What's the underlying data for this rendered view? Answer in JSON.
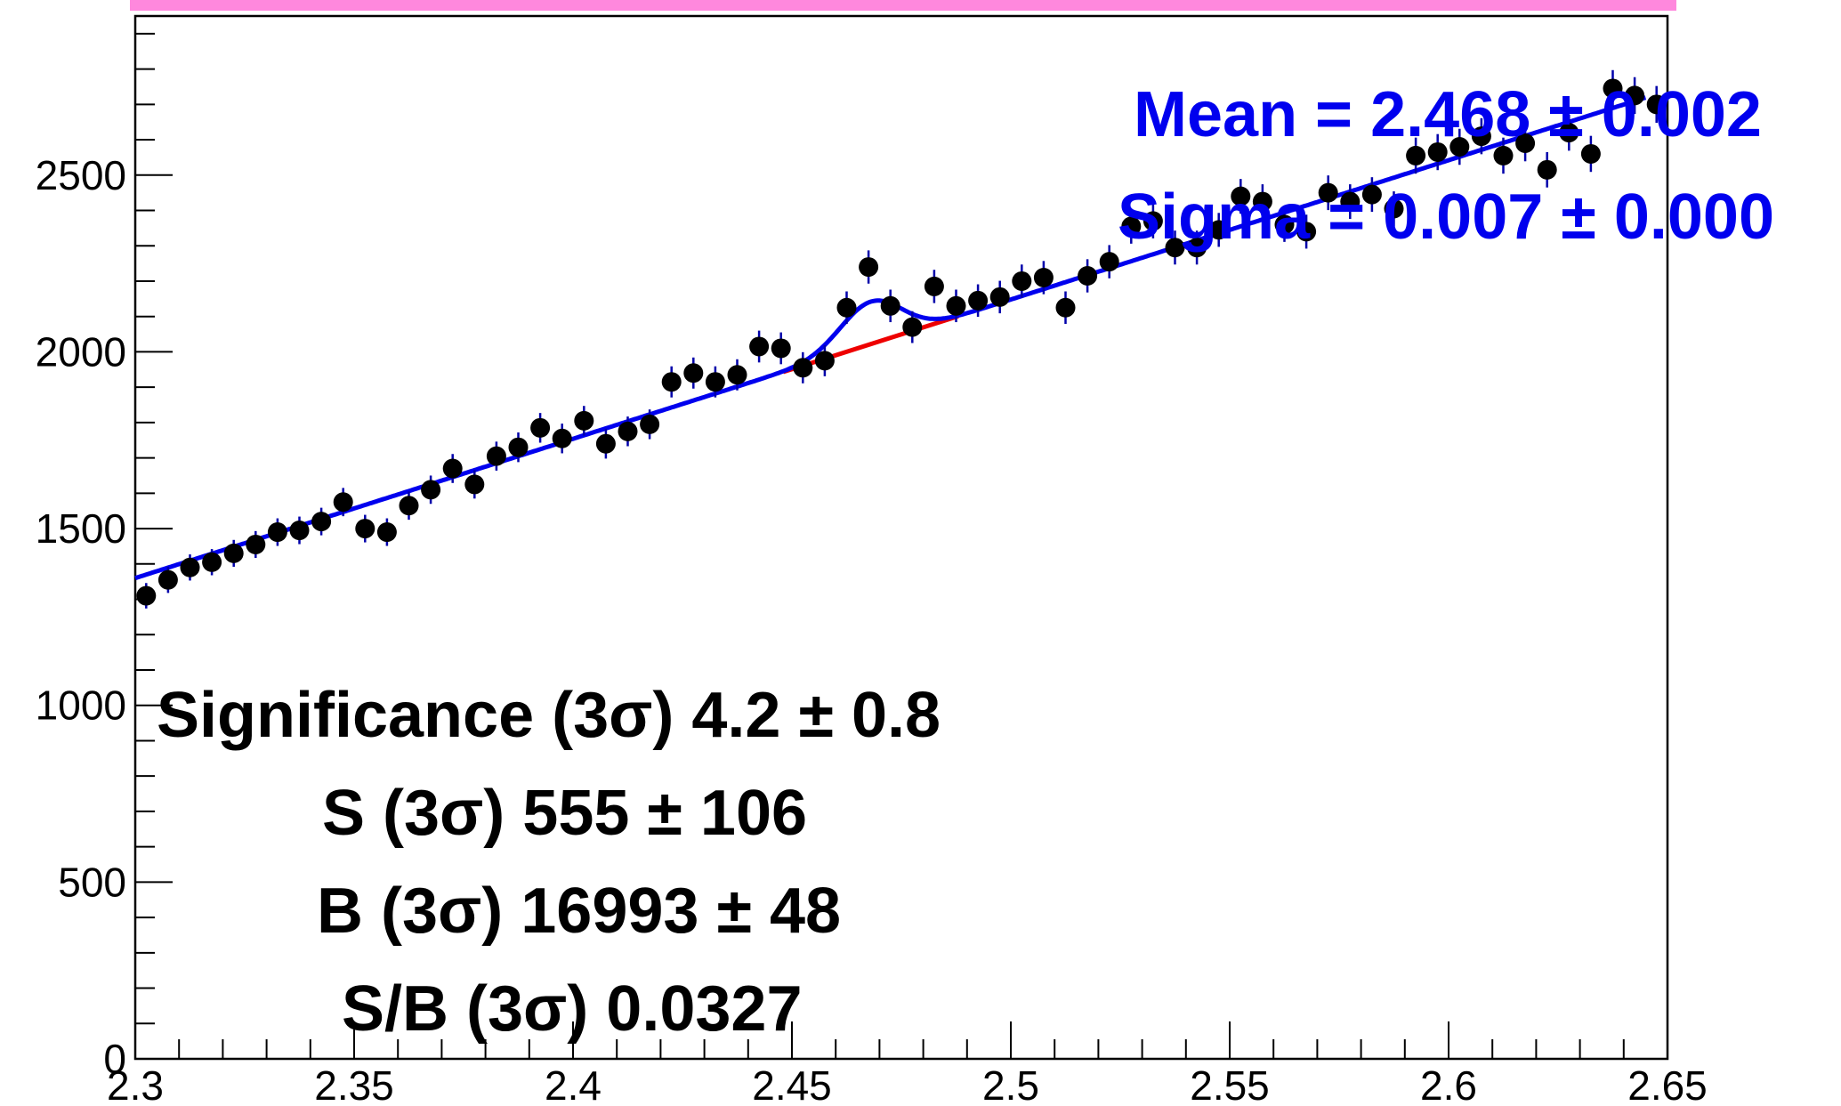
{
  "chart_data": {
    "type": "scatter",
    "title": "",
    "xlabel": "",
    "ylabel": "",
    "xlim": [
      2.3,
      2.65
    ],
    "ylim": [
      0,
      2950
    ],
    "x_ticks": [
      "2.3",
      "2.35",
      "2.4",
      "2.45",
      "2.5",
      "2.55",
      "2.6",
      "2.65"
    ],
    "y_ticks": [
      "0",
      "500",
      "1000",
      "1500",
      "2000",
      "2500"
    ],
    "x_tick_values": [
      2.3,
      2.35,
      2.4,
      2.45,
      2.5,
      2.55,
      2.6,
      2.65
    ],
    "y_tick_values": [
      0,
      500,
      1000,
      1500,
      2000,
      2500
    ],
    "series": [
      {
        "type": "points",
        "x": [
          2.3025,
          2.3075,
          2.3125,
          2.3175,
          2.3225,
          2.3275,
          2.3325,
          2.3375,
          2.3425,
          2.3475,
          2.3525,
          2.3575,
          2.3625,
          2.3675,
          2.3725,
          2.3775,
          2.3825,
          2.3875,
          2.3925,
          2.3975,
          2.4025,
          2.4075,
          2.4125,
          2.4175,
          2.4225,
          2.4275,
          2.4325,
          2.4375,
          2.4425,
          2.4475,
          2.4525,
          2.4575,
          2.4625,
          2.4675,
          2.4725,
          2.4775,
          2.4825,
          2.4875,
          2.4925,
          2.4975,
          2.5025,
          2.5075,
          2.5125,
          2.5175,
          2.5225,
          2.5275,
          2.5325,
          2.5375,
          2.5425,
          2.5475,
          2.5525,
          2.5575,
          2.5625,
          2.5675,
          2.5725,
          2.5775,
          2.5825,
          2.5875,
          2.5925,
          2.5975,
          2.6025,
          2.6075,
          2.6125,
          2.6175,
          2.6225,
          2.6275,
          2.6325,
          2.6375,
          2.6425,
          2.6475
        ],
        "y": [
          1310,
          1355,
          1390,
          1405,
          1430,
          1455,
          1490,
          1495,
          1520,
          1575,
          1500,
          1490,
          1565,
          1610,
          1670,
          1625,
          1705,
          1730,
          1785,
          1755,
          1805,
          1740,
          1775,
          1795,
          1915,
          1940,
          1915,
          1935,
          2015,
          2010,
          1955,
          1975,
          2125,
          2240,
          2130,
          2070,
          2185,
          2130,
          2145,
          2155,
          2200,
          2210,
          2125,
          2215,
          2255,
          2355,
          2370,
          2295,
          2295,
          2345,
          2440,
          2425,
          2360,
          2340,
          2450,
          2425,
          2445,
          2405,
          2555,
          2565,
          2580,
          2610,
          2555,
          2590,
          2515,
          2620,
          2560,
          2745,
          2725,
          2700
        ],
        "yerr": [
          36,
          37,
          37,
          37,
          38,
          38,
          39,
          39,
          39,
          40,
          39,
          39,
          40,
          40,
          41,
          40,
          41,
          42,
          42,
          42,
          42,
          42,
          42,
          42,
          44,
          44,
          44,
          44,
          45,
          45,
          44,
          44,
          46,
          47,
          46,
          45,
          47,
          46,
          46,
          46,
          47,
          47,
          46,
          47,
          47,
          49,
          49,
          48,
          48,
          48,
          49,
          49,
          49,
          48,
          49,
          49,
          49,
          49,
          51,
          51,
          51,
          51,
          51,
          51,
          50,
          51,
          51,
          52,
          52,
          52
        ]
      },
      {
        "type": "line",
        "role": "total fit",
        "color": "#0000ee",
        "background_intercept": 1360,
        "background_slope": 3940,
        "background_x0": 2.3,
        "signal_amplitude": 120,
        "signal_mean": 2.468,
        "signal_sigma": 0.007,
        "x_range": [
          2.3,
          2.645
        ]
      },
      {
        "type": "line",
        "role": "background",
        "color": "#ee0000",
        "x_range": [
          2.448,
          2.488
        ]
      }
    ],
    "annotations": {
      "mean": "Mean = 2.468 ± 0.002",
      "sigma": "Sigma = 0.007 ± 0.000",
      "significance": "Significance (3σ) 4.2 ± 0.8",
      "signal": "S (3σ) 555 ± 106",
      "background": "B (3σ) 16993 ± 48",
      "s_over_b": "S/B (3σ) 0.0327"
    },
    "grid": false,
    "legend": "none",
    "colors": {
      "fit": "#0000ee",
      "background": "#ee0000",
      "points": "#000000",
      "error_bars": "#0000aa",
      "top_band": "#ff88dd"
    }
  }
}
